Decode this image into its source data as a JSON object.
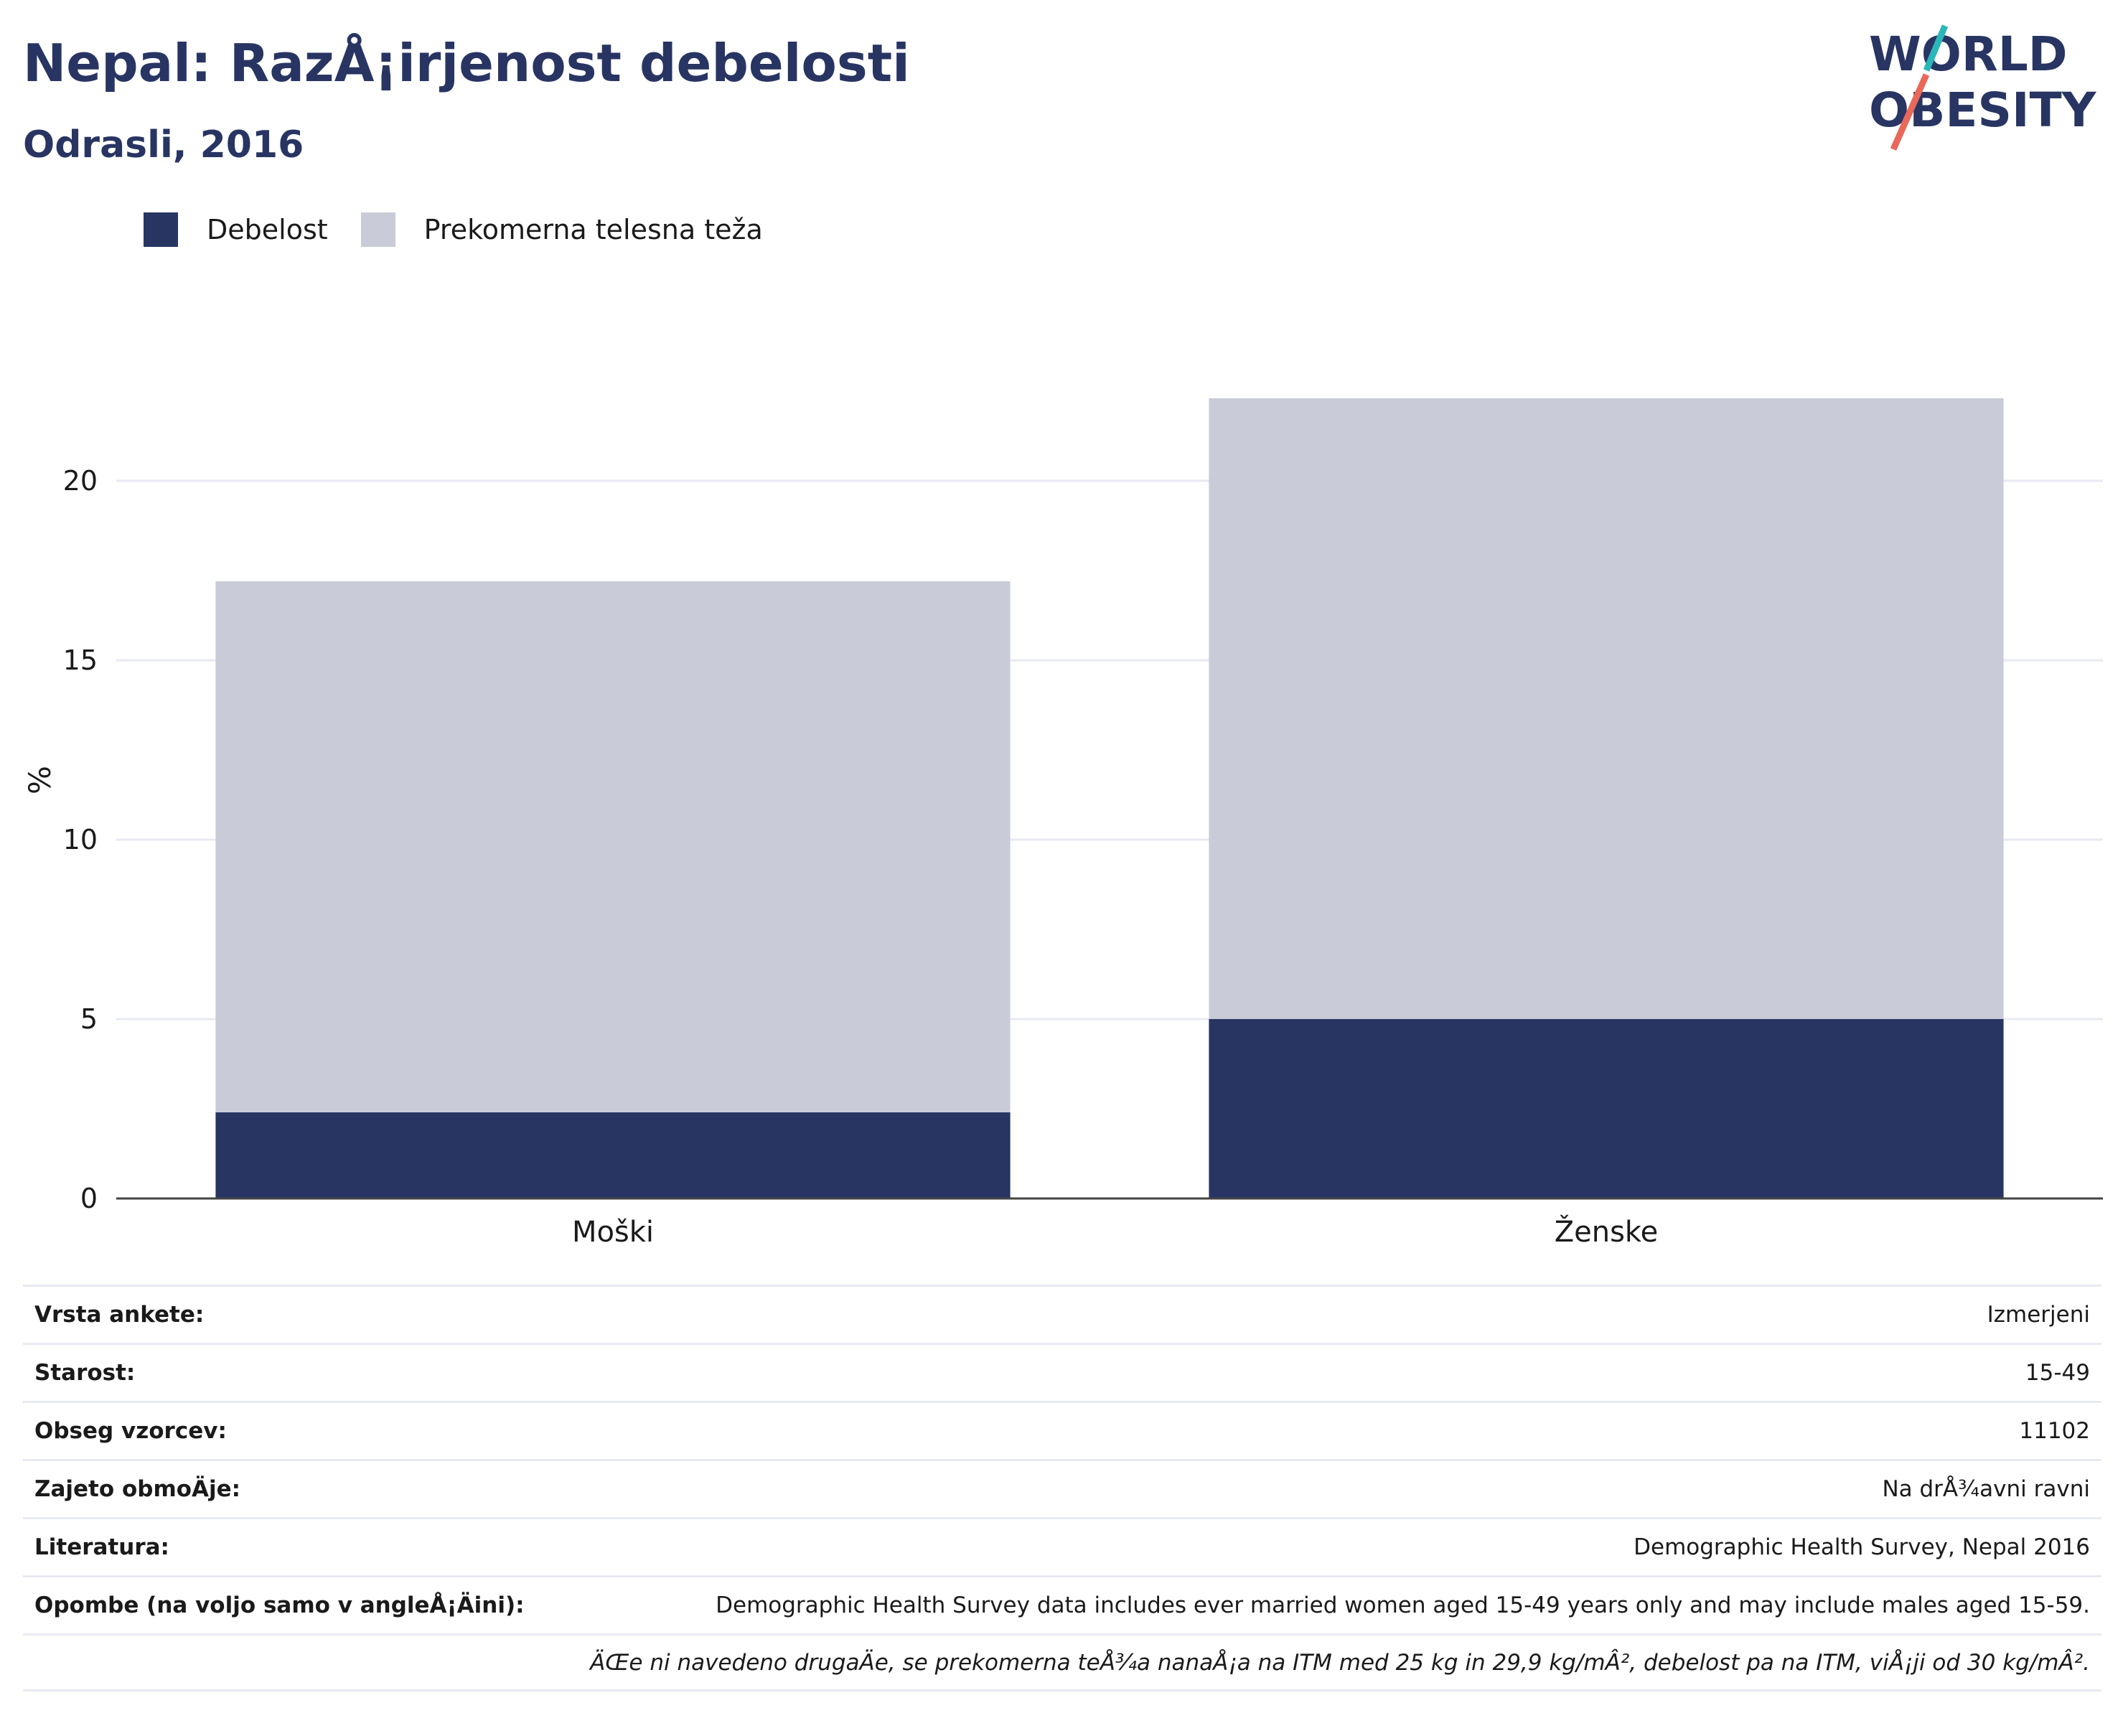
{
  "header": {
    "title": "Nepal: RazÅ¡irjenost debelosti",
    "subtitle": "Odrasli, 2016"
  },
  "logo": {
    "line1": "WORLD",
    "line2": "OBESITY",
    "colors": {
      "text": "#283563",
      "slash_top": "#2bb6b8",
      "slash_bottom": "#e8685a"
    }
  },
  "legend": {
    "items": [
      {
        "label": "Debelost",
        "color": "#283563"
      },
      {
        "label": "Prekomerna telesna teža",
        "color": "#c9ccd8"
      }
    ]
  },
  "chart_data": {
    "type": "bar",
    "stacked": true,
    "categories": [
      "Moški",
      "Ženske"
    ],
    "series": [
      {
        "name": "Debelost",
        "values": [
          2.4,
          5.0
        ],
        "color": "#283563"
      },
      {
        "name": "Prekomerna telesna teža",
        "values": [
          14.8,
          17.3
        ],
        "color": "#c9ccd8"
      }
    ],
    "ylabel": "%",
    "ylim": [
      0,
      25
    ],
    "yticks": [
      0,
      5,
      10,
      15,
      20
    ],
    "grid": true,
    "legend_position": "top-left"
  },
  "info": {
    "rows": [
      {
        "label": "Vrsta ankete:",
        "value": "Izmerjeni"
      },
      {
        "label": "Starost:",
        "value": "15-49"
      },
      {
        "label": "Obseg vzorcev:",
        "value": "11102"
      },
      {
        "label": "Zajeto obmoÄje:",
        "value": "Na drÅ¾avni ravni"
      },
      {
        "label": "Literatura:",
        "value": "Demographic Health Survey, Nepal 2016"
      },
      {
        "label": "Opombe (na voljo samo v angleÅ¡Äini):",
        "value": "Demographic Health Survey data includes ever married women aged 15-49 years only and may include males aged 15-59."
      }
    ],
    "note": "ÄŒe ni navedeno drugaÄe, se prekomerna teÅ¾a nanaÅ¡a na ITM med 25 kg in 29,9 kg/mÂ², debelost pa na ITM, viÅ¡ji od 30 kg/mÂ²."
  }
}
